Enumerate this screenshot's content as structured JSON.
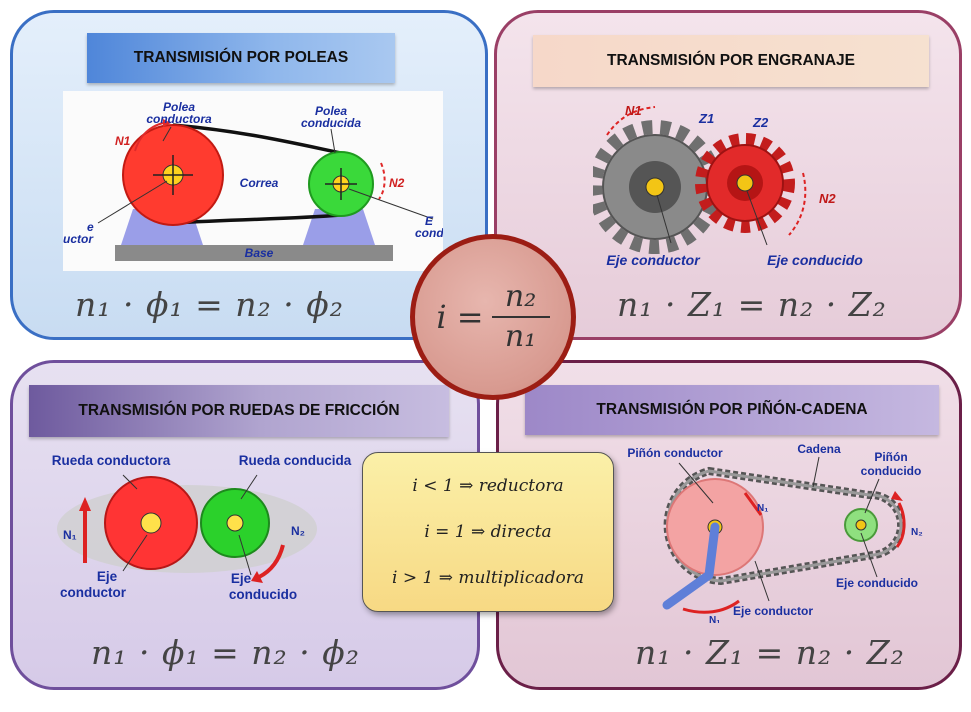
{
  "center": {
    "lhs": "i =",
    "numerator": "n₂",
    "denominator": "n₁"
  },
  "poleas": {
    "title": "TRANSMISIÓN POR POLEAS",
    "labels": {
      "polea_conductora": [
        "Polea",
        "conductora"
      ],
      "polea_conducida": [
        "Polea",
        "conducida"
      ],
      "correa": "Correa",
      "base": "Base",
      "eje_left": [
        "e",
        "uctor"
      ],
      "eje_right": [
        "E",
        "cond"
      ],
      "n1": "N1",
      "n2": "N2"
    },
    "formula": "n₁ · ϕ₁ = n₂ · ϕ₂"
  },
  "engranaje": {
    "title": "TRANSMISIÓN POR ENGRANAJE",
    "labels": {
      "n1": "N1",
      "z1": "Z1",
      "z2": "Z2",
      "n2": "N2",
      "eje_conductor": "Eje conductor",
      "eje_conducido": "Eje conducido"
    },
    "formula": "n₁ · Z₁ = n₂ · Z₂"
  },
  "friccion": {
    "title": "TRANSMISIÓN POR RUEDAS DE FRICCIÓN",
    "labels": {
      "rueda_conductora": "Rueda conductora",
      "rueda_conducida": "Rueda conducida",
      "n1": "N₁",
      "n2": "N₂",
      "eje_conductor": [
        "Eje",
        "conductor"
      ],
      "eje_conducido": [
        "Eje",
        "conducido"
      ]
    },
    "formula": "n₁ · ϕ₁ = n₂ · ϕ₂"
  },
  "cadena": {
    "title": "TRANSMISIÓN POR PIÑÓN-CADENA",
    "labels": {
      "pinon_conductor": "Piñón conductor",
      "cadena": "Cadena",
      "pinon_conducido": [
        "Piñón",
        "conducido"
      ],
      "n1a": "N₁",
      "n1b": "N₁",
      "n2": "N₂",
      "eje_conducido": "Eje conducido",
      "eje_conductor": "Eje conductor"
    },
    "formula": "n₁ · Z₁ = n₂ · Z₂"
  },
  "ratios": [
    "i < 1 ⇒ reductora",
    "i = 1 ⇒ directa",
    "i > 1 ⇒ multiplicadora"
  ]
}
